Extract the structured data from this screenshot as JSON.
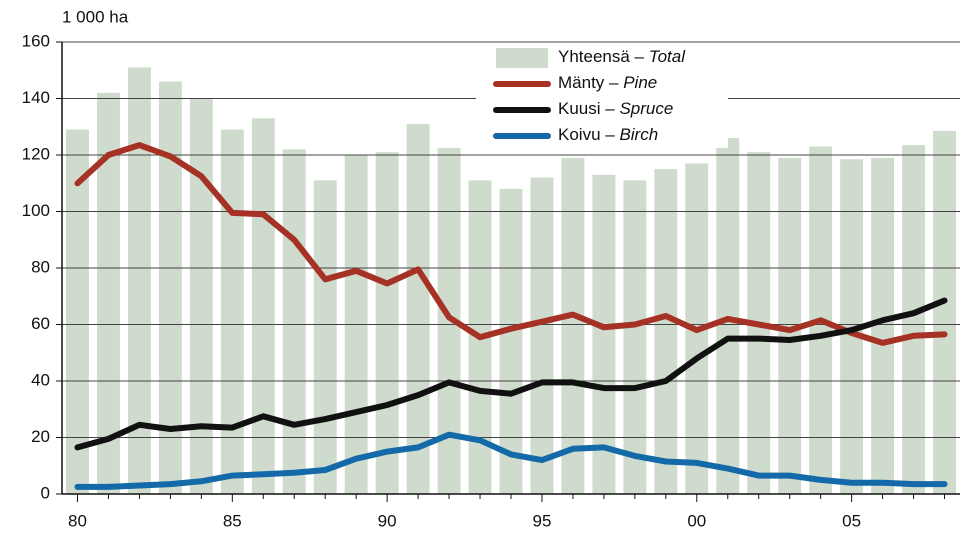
{
  "chart_data": {
    "type": "bar",
    "y_axis_label": "1 000 ha",
    "categories": [
      "80",
      null,
      null,
      null,
      null,
      "85",
      null,
      null,
      null,
      null,
      "90",
      null,
      null,
      null,
      null,
      "95",
      null,
      null,
      null,
      null,
      "00",
      null,
      null,
      null,
      null,
      "05",
      null,
      null,
      null
    ],
    "ylim": [
      0,
      160
    ],
    "yticks": [
      0,
      20,
      40,
      60,
      80,
      100,
      120,
      140,
      160
    ],
    "grid": true,
    "series": [
      {
        "name": "Yhteensä – Total",
        "type": "bar",
        "color": "#cfdbcc",
        "values": [
          129,
          142,
          151,
          146,
          140,
          129,
          133,
          122,
          111,
          120,
          121,
          131,
          122.5,
          111,
          108,
          112,
          119,
          113,
          111,
          115,
          117,
          126,
          121,
          119,
          123,
          118.5,
          119,
          123.5,
          128.5
        ]
      },
      {
        "name": "Mänty – Pine",
        "type": "line",
        "color": "#a63226",
        "values": [
          110,
          120,
          123.5,
          119.5,
          112.5,
          99.5,
          99,
          90,
          76,
          79,
          74.5,
          79.5,
          62.5,
          55.5,
          58.5,
          61,
          63.5,
          59,
          60,
          63,
          58,
          62,
          60,
          58,
          61.5,
          57,
          53.5,
          56,
          56.5
        ]
      },
      {
        "name": "Kuusi – Spruce",
        "type": "line",
        "color": "#111111",
        "values": [
          16.5,
          19.5,
          24.5,
          23,
          24,
          23.5,
          27.5,
          24.5,
          26.5,
          29,
          31.5,
          35,
          39.5,
          36.5,
          35.5,
          39.5,
          39.5,
          37.5,
          37.5,
          40,
          48,
          55,
          55,
          54.5,
          56,
          58,
          61.5,
          64,
          68.5
        ]
      },
      {
        "name": "Koivu – Birch",
        "type": "line",
        "color": "#1469a8",
        "values": [
          2.5,
          2.5,
          3,
          3.5,
          4.5,
          6.5,
          7,
          7.5,
          8.5,
          12.5,
          15,
          16.5,
          21,
          19,
          14,
          12,
          16,
          16.5,
          13.5,
          11.5,
          11,
          9,
          6.5,
          6.5,
          5,
          4,
          4,
          3.5,
          3.5
        ]
      }
    ]
  }
}
